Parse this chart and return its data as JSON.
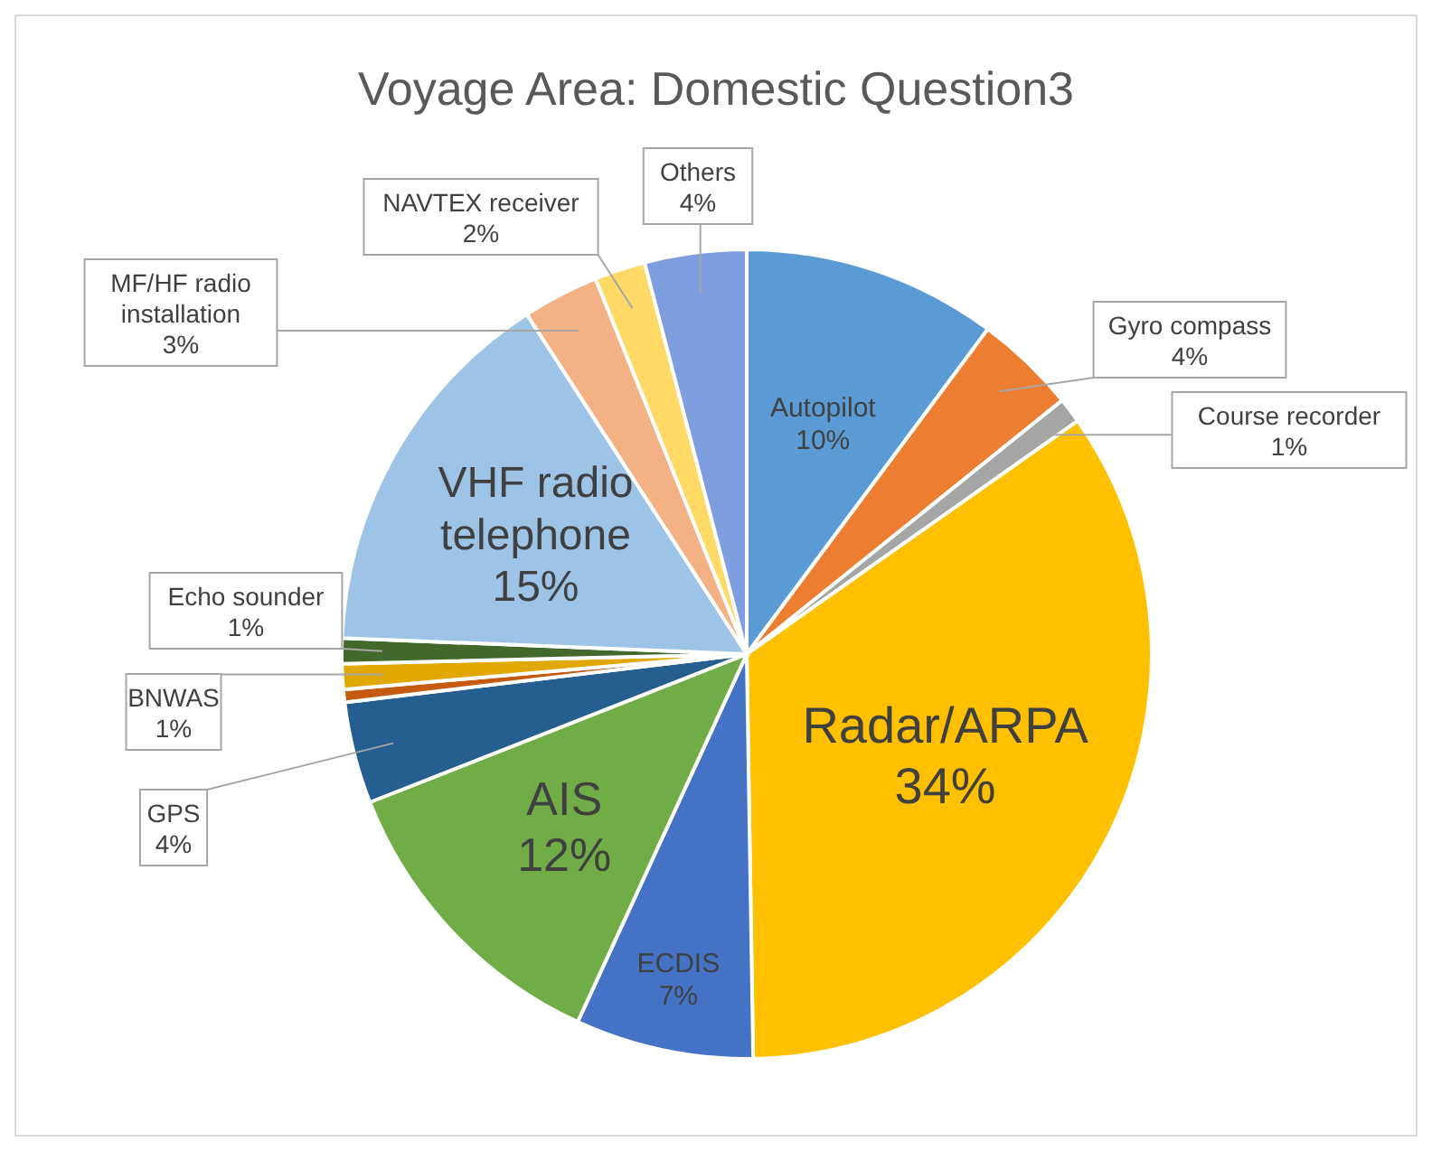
{
  "chart_data": {
    "type": "pie",
    "title": "Voyage Area: Domestic  Question3",
    "categories": [
      "Autopilot",
      "Gyro compass",
      "Course recorder",
      "Radar/ARPA",
      "ECDIS",
      "AIS",
      "GPS",
      null,
      "BNWAS",
      "Echo sounder",
      "VHF radio telephone",
      "MF/HF radio installation",
      "NAVTEX receiver",
      "Others"
    ],
    "values": [
      10,
      4,
      1,
      34,
      7,
      12,
      4,
      0.5,
      1,
      1,
      15,
      3,
      2,
      4
    ],
    "value_labels": [
      "10%",
      "4%",
      "1%",
      "34%",
      "7%",
      "12%",
      "4%",
      null,
      "1%",
      "1%",
      "15%",
      "3%",
      "2%",
      "4%"
    ],
    "colors": [
      "#5b9bd5",
      "#ed7d31",
      "#a5a5a5",
      "#ffc000",
      "#4472c4",
      "#70ad47",
      "#255e91",
      "#c55a11",
      "#e0a800",
      "#43682b",
      "#9dc3e6",
      "#f4b183",
      "#ffd966",
      "#7f9ee0"
    ]
  }
}
